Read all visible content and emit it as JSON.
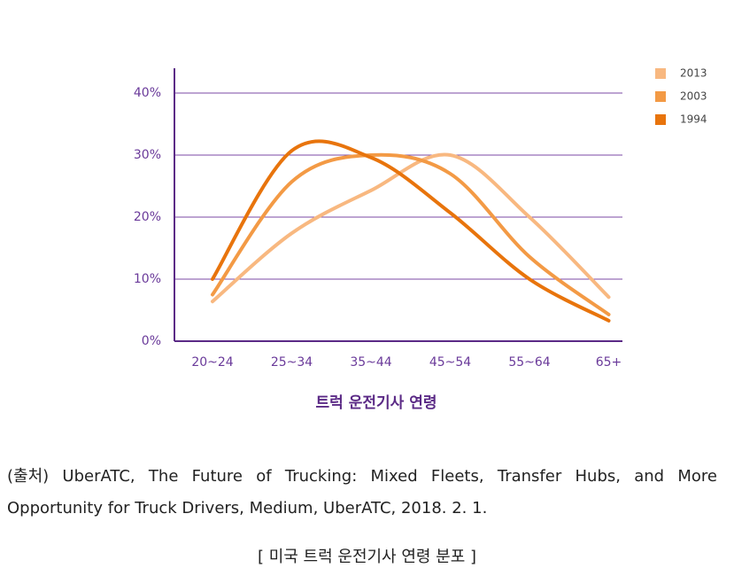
{
  "chart_data": {
    "type": "line",
    "x_label": "트럭 운전기사 연령",
    "categories": [
      "20~24",
      "25~34",
      "35~44",
      "45~54",
      "55~64",
      "65+"
    ],
    "series": [
      {
        "name": "2013",
        "color": "#f8b880",
        "values": [
          6.4,
          17.4,
          24.3,
          30,
          20,
          7.1
        ]
      },
      {
        "name": "2003",
        "color": "#f39a45",
        "values": [
          7.5,
          25.7,
          30,
          27,
          13.6,
          4.3
        ]
      },
      {
        "name": "1994",
        "color": "#e8740c",
        "values": [
          10,
          30.7,
          29.6,
          20.7,
          10,
          3.3
        ]
      }
    ],
    "ylim": [
      0,
      44
    ],
    "yticks": [
      {
        "value": 0,
        "label": "0%"
      },
      {
        "value": 10,
        "label": "10%"
      },
      {
        "value": 20,
        "label": "20%"
      },
      {
        "value": 30,
        "label": "30%"
      },
      {
        "value": 40,
        "label": "40%"
      }
    ],
    "grid": true,
    "smooth": true,
    "legend": "top-right"
  },
  "source": "(출처) UberATC, The Future of Trucking: Mixed Fleets, Transfer Hubs, and More Opportunity for Truck Drivers, Medium, UberATC, 2018. 2. 1.",
  "caption": "[ 미국 트럭 운전기사 연령 분포 ]"
}
